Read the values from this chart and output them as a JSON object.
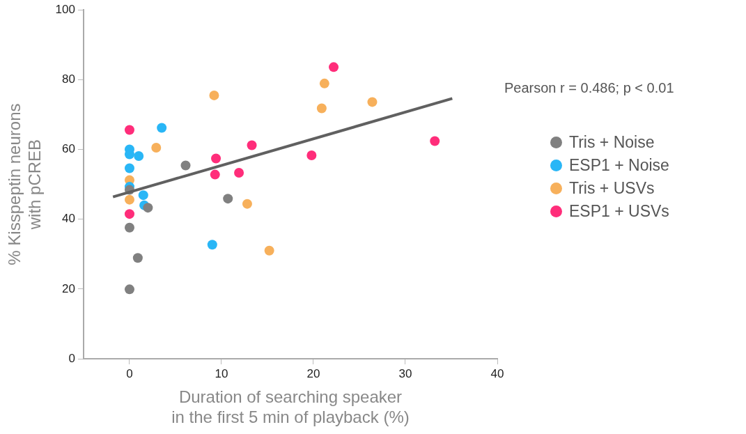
{
  "chart_data": {
    "type": "scatter",
    "xlabel": "Duration of searching speaker\nin the first 5 min of playback (%)",
    "ylabel": "% Kisspeptin neurons\nwith pCREB",
    "xlim": [
      -5,
      40
    ],
    "xticks": [
      0,
      10,
      20,
      30,
      40
    ],
    "ylim": [
      0,
      100
    ],
    "yticks": [
      0,
      20,
      40,
      60,
      80,
      100
    ],
    "grid": false,
    "legend": "right",
    "marker": "circle",
    "annotations": [
      "Pearson r = 0.486; p < 0.01"
    ],
    "series": [
      {
        "name": "Tris + Noise",
        "color": "#808080",
        "x": [
          0,
          0,
          0,
          0.9,
          2.0,
          6.1,
          10.7
        ],
        "values": [
          48.4,
          37.6,
          19.9,
          28.9,
          43.3,
          55.4,
          45.9
        ]
      },
      {
        "name": "ESP1 + Noise",
        "color": "#29b6f6",
        "x": [
          0,
          0,
          0,
          0,
          1.0,
          1.5,
          1.6,
          3.5,
          9.0
        ],
        "values": [
          60.0,
          58.6,
          54.6,
          49.3,
          58.1,
          46.9,
          44.0,
          66.2,
          32.7
        ]
      },
      {
        "name": "Tris + USVs",
        "color": "#f7b05b",
        "x": [
          0,
          0,
          2.9,
          9.2,
          12.8,
          15.2,
          20.9,
          21.2,
          26.4
        ],
        "values": [
          51.2,
          45.6,
          60.5,
          75.5,
          44.4,
          31.0,
          71.8,
          78.9,
          73.6
        ]
      },
      {
        "name": "ESP1 + USVs",
        "color": "#ff2d7a",
        "x": [
          0,
          0,
          9.3,
          9.4,
          11.9,
          13.3,
          19.8,
          22.2,
          33.2
        ],
        "values": [
          65.6,
          41.5,
          52.8,
          57.4,
          53.3,
          61.2,
          58.3,
          83.6,
          62.4
        ]
      },
      {
        "type": "line",
        "color": "#606060",
        "marker": "none",
        "x": [
          -1.8,
          35.1
        ],
        "values": [
          46.4,
          74.6
        ]
      }
    ]
  }
}
